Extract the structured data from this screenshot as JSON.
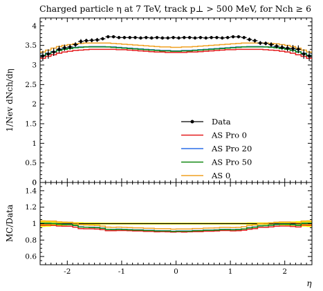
{
  "title": "Charged particle η at 7 TeV, track p⊥ > 500 MeV, for Nch ≥ 6",
  "chart_data": [
    {
      "type": "line",
      "panel": "main",
      "ylabel": "1/Nev dNch/dη",
      "xlabel": "",
      "xlim": [
        -2.5,
        2.5
      ],
      "ylim": [
        0,
        4.2
      ],
      "yticks": [
        "0",
        "0.5",
        "1",
        "1.5",
        "2",
        "2.5",
        "3",
        "3.5",
        "4"
      ],
      "x": [
        -2.45,
        -2.35,
        -2.25,
        -2.15,
        -2.05,
        -1.95,
        -1.85,
        -1.75,
        -1.65,
        -1.55,
        -1.45,
        -1.35,
        -1.25,
        -1.15,
        -1.05,
        -0.95,
        -0.85,
        -0.75,
        -0.65,
        -0.55,
        -0.45,
        -0.35,
        -0.25,
        -0.15,
        -0.05,
        0.05,
        0.15,
        0.25,
        0.35,
        0.45,
        0.55,
        0.65,
        0.75,
        0.85,
        0.95,
        1.05,
        1.15,
        1.25,
        1.35,
        1.45,
        1.55,
        1.65,
        1.75,
        1.85,
        1.95,
        2.05,
        2.15,
        2.25,
        2.35,
        2.45
      ],
      "data": {
        "name": "Data",
        "color": "#000000",
        "values": [
          3.23,
          3.28,
          3.33,
          3.4,
          3.44,
          3.46,
          3.52,
          3.6,
          3.62,
          3.63,
          3.64,
          3.67,
          3.72,
          3.72,
          3.7,
          3.7,
          3.7,
          3.7,
          3.69,
          3.7,
          3.69,
          3.7,
          3.69,
          3.69,
          3.7,
          3.69,
          3.7,
          3.7,
          3.69,
          3.7,
          3.69,
          3.7,
          3.7,
          3.69,
          3.7,
          3.72,
          3.72,
          3.7,
          3.65,
          3.62,
          3.56,
          3.55,
          3.52,
          3.48,
          3.45,
          3.43,
          3.42,
          3.4,
          3.28,
          3.23
        ],
        "errors": [
          0.13,
          0.12,
          0.1,
          0.09,
          0.08,
          0.07,
          0.06,
          0.06,
          0.05,
          0.05,
          0.05,
          0.04,
          0.04,
          0.04,
          0.04,
          0.04,
          0.04,
          0.04,
          0.04,
          0.04,
          0.04,
          0.04,
          0.04,
          0.04,
          0.04,
          0.04,
          0.04,
          0.04,
          0.04,
          0.04,
          0.04,
          0.04,
          0.04,
          0.04,
          0.04,
          0.04,
          0.04,
          0.04,
          0.05,
          0.05,
          0.05,
          0.05,
          0.06,
          0.06,
          0.07,
          0.08,
          0.09,
          0.1,
          0.12,
          0.13
        ]
      },
      "series": [
        {
          "name": "AS Pro 0",
          "color": "#e41a1c",
          "values": [
            3.17,
            3.22,
            3.26,
            3.3,
            3.33,
            3.35,
            3.37,
            3.38,
            3.39,
            3.4,
            3.4,
            3.4,
            3.4,
            3.4,
            3.39,
            3.39,
            3.38,
            3.37,
            3.36,
            3.35,
            3.34,
            3.33,
            3.33,
            3.32,
            3.32,
            3.32,
            3.32,
            3.33,
            3.33,
            3.34,
            3.35,
            3.36,
            3.37,
            3.38,
            3.39,
            3.39,
            3.4,
            3.4,
            3.4,
            3.4,
            3.4,
            3.39,
            3.38,
            3.37,
            3.35,
            3.33,
            3.3,
            3.26,
            3.22,
            3.17
          ]
        },
        {
          "name": "AS Pro 20",
          "color": "#2a6ee8",
          "values": [
            3.25,
            3.3,
            3.34,
            3.38,
            3.41,
            3.43,
            3.45,
            3.46,
            3.46,
            3.47,
            3.47,
            3.47,
            3.46,
            3.46,
            3.45,
            3.44,
            3.43,
            3.42,
            3.41,
            3.4,
            3.39,
            3.38,
            3.37,
            3.37,
            3.36,
            3.36,
            3.37,
            3.37,
            3.38,
            3.39,
            3.4,
            3.41,
            3.42,
            3.43,
            3.44,
            3.45,
            3.46,
            3.46,
            3.47,
            3.47,
            3.47,
            3.46,
            3.46,
            3.45,
            3.43,
            3.41,
            3.38,
            3.34,
            3.3,
            3.25
          ]
        },
        {
          "name": "AS Pro 50",
          "color": "#118811",
          "values": [
            3.24,
            3.29,
            3.33,
            3.37,
            3.4,
            3.42,
            3.44,
            3.45,
            3.46,
            3.46,
            3.46,
            3.46,
            3.46,
            3.45,
            3.44,
            3.43,
            3.42,
            3.41,
            3.4,
            3.39,
            3.38,
            3.37,
            3.36,
            3.36,
            3.35,
            3.35,
            3.36,
            3.36,
            3.37,
            3.38,
            3.39,
            3.4,
            3.41,
            3.42,
            3.43,
            3.44,
            3.45,
            3.46,
            3.46,
            3.46,
            3.46,
            3.46,
            3.45,
            3.44,
            3.42,
            3.4,
            3.37,
            3.33,
            3.29,
            3.24
          ]
        },
        {
          "name": "AS 0",
          "color": "#f0a020",
          "values": [
            3.33,
            3.38,
            3.43,
            3.47,
            3.5,
            3.52,
            3.54,
            3.55,
            3.56,
            3.56,
            3.56,
            3.56,
            3.56,
            3.55,
            3.54,
            3.53,
            3.52,
            3.51,
            3.5,
            3.49,
            3.48,
            3.47,
            3.46,
            3.46,
            3.45,
            3.45,
            3.46,
            3.46,
            3.47,
            3.48,
            3.49,
            3.5,
            3.51,
            3.52,
            3.53,
            3.54,
            3.55,
            3.56,
            3.56,
            3.56,
            3.56,
            3.56,
            3.55,
            3.54,
            3.52,
            3.5,
            3.47,
            3.43,
            3.38,
            3.33
          ]
        }
      ],
      "legend": "center-right"
    },
    {
      "type": "line",
      "panel": "ratio",
      "ylabel": "MC/Data",
      "xlabel": "η",
      "xlim": [
        -2.5,
        2.5
      ],
      "ylim": [
        0.5,
        1.5
      ],
      "xticks": [
        "-2",
        "-1",
        "0",
        "1",
        "2"
      ],
      "yticks": [
        "0.6",
        "0.8",
        "1",
        "1.2",
        "1.4"
      ],
      "band_color": "#ffff00"
    }
  ]
}
